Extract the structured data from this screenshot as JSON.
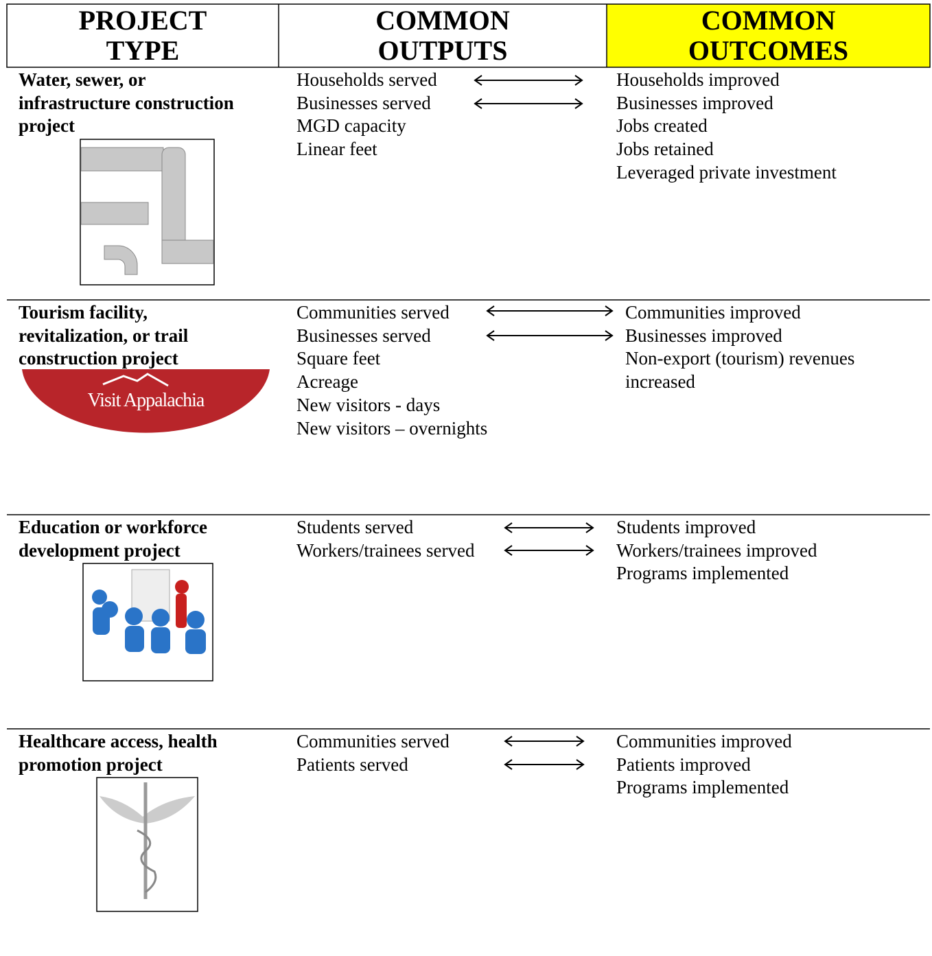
{
  "header": {
    "project_type": [
      "PROJECT",
      "TYPE"
    ],
    "outputs": [
      "COMMON",
      "OUTPUTS"
    ],
    "outcomes": [
      "COMMON",
      "OUTCOMES"
    ]
  },
  "rows": [
    {
      "project": [
        "Water, sewer, or",
        "infrastructure construction",
        "project"
      ],
      "outputs": [
        "Households served",
        "Businesses served",
        "MGD capacity",
        "Linear feet"
      ],
      "outcomes": [
        "Households improved",
        "Businesses improved",
        "Jobs created",
        "Jobs retained",
        "Leveraged private investment"
      ]
    },
    {
      "project": [
        "Tourism facility,",
        "revitalization, or trail",
        "construction project"
      ],
      "logo_text": "Visit Appalachia",
      "outputs": [
        "Communities served",
        "Businesses served",
        "Square feet",
        "Acreage",
        "New visitors - days",
        "New visitors – overnights"
      ],
      "outcomes": [
        "Communities improved",
        "Businesses improved",
        "Non-export (tourism) revenues",
        "increased"
      ]
    },
    {
      "project": [
        "Education or workforce",
        "development project"
      ],
      "outputs": [
        "Students served",
        "Workers/trainees served"
      ],
      "outcomes": [
        "Students improved",
        "Workers/trainees improved",
        "Programs implemented"
      ]
    },
    {
      "project": [
        "Healthcare access, health",
        "promotion project"
      ],
      "outputs": [
        "Communities served",
        "Patients served"
      ],
      "outcomes": [
        "Communities improved",
        "Patients improved",
        "Programs implemented"
      ]
    }
  ]
}
